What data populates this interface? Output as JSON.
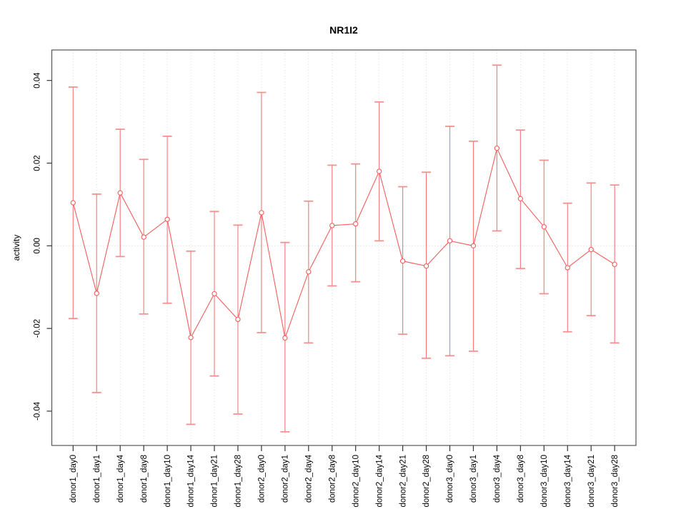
{
  "figure": {
    "background": "#ffffff"
  },
  "chart_data": {
    "type": "line",
    "subtype": "points-with-error-bars",
    "title": "NR1I2",
    "ylabel": "activity",
    "xlabel": "",
    "grid": {
      "vertical": "dotted-per-category",
      "horizontal": "dotted-zero-line-only"
    },
    "legend_position": "none",
    "marker": "open-circle",
    "categories": [
      "donor1_day0",
      "donor1_day1",
      "donor1_day4",
      "donor1_day8",
      "donor1_day10",
      "donor1_day14",
      "donor1_day21",
      "donor1_day28",
      "donor2_day0",
      "donor2_day1",
      "donor2_day4",
      "donor2_day8",
      "donor2_day10",
      "donor2_day14",
      "donor2_day21",
      "donor2_day28",
      "donor3_day0",
      "donor3_day1",
      "donor3_day4",
      "donor3_day8",
      "donor3_day10",
      "donor3_day14",
      "donor3_day21",
      "donor3_day28"
    ],
    "series": [
      {
        "name": "activity",
        "values": [
          0.0104,
          -0.0115,
          0.0128,
          0.0021,
          0.0064,
          -0.0222,
          -0.0116,
          -0.0178,
          0.008,
          -0.0223,
          -0.0063,
          0.0049,
          0.0053,
          0.018,
          -0.0037,
          -0.0049,
          0.0012,
          0.0,
          0.0236,
          0.0114,
          0.0046,
          -0.0053,
          -0.0009,
          -0.0045
        ],
        "upper": [
          0.0384,
          0.0125,
          0.0282,
          0.0209,
          0.0265,
          -0.0013,
          0.0083,
          0.005,
          0.0371,
          0.0008,
          0.0108,
          0.0195,
          0.0198,
          0.0348,
          0.0143,
          0.0178,
          0.0289,
          0.0253,
          0.0437,
          0.028,
          0.0207,
          0.0103,
          0.0152,
          0.0147
        ],
        "lower": [
          -0.0176,
          -0.0355,
          -0.0026,
          -0.0165,
          -0.0139,
          -0.0432,
          -0.0315,
          -0.0407,
          -0.021,
          -0.045,
          -0.0235,
          -0.0097,
          -0.0087,
          0.0012,
          -0.0214,
          -0.0272,
          -0.0266,
          -0.0255,
          0.0036,
          -0.0055,
          -0.0116,
          -0.0208,
          -0.0169,
          -0.0235
        ]
      }
    ],
    "yticks": [
      -0.04,
      -0.02,
      0.0,
      0.02,
      0.04
    ],
    "ytick_labels": [
      "-0.04",
      "-0.02",
      "0.00",
      "0.02",
      "0.04"
    ],
    "ylim": [
      -0.0478,
      0.0474
    ],
    "colors": {
      "line": "#f25d5d",
      "marker_stroke": "#f25d5d",
      "marker_fill": "#ffffff",
      "errorbar": "#f47878",
      "errorbar_cap": "#f69090",
      "grid": "#dcdcdc",
      "zero_line": "#c9c9c9",
      "box": "#555555",
      "tick": "#333333",
      "text": "#000000"
    }
  }
}
